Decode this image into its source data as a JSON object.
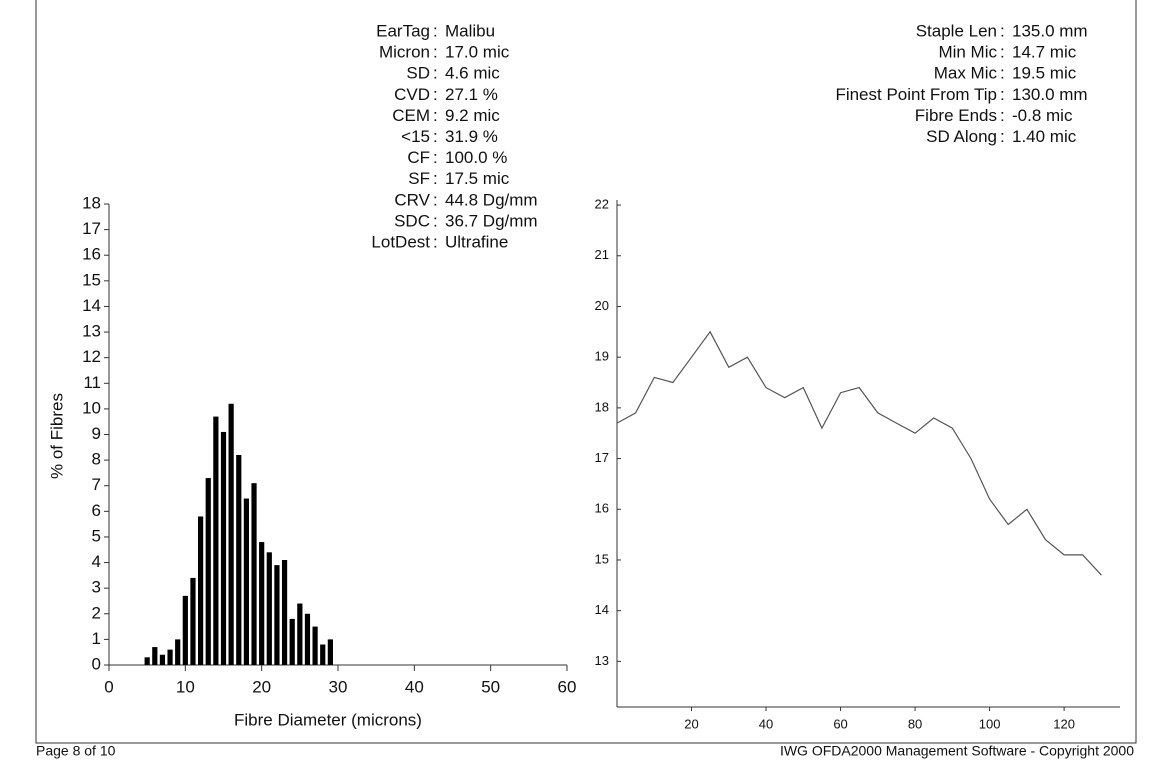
{
  "stats_left": [
    {
      "label": "EarTag",
      "value": "Malibu"
    },
    {
      "label": "Micron",
      "value": "17.0 mic"
    },
    {
      "label": "SD",
      "value": "4.6 mic"
    },
    {
      "label": "CVD",
      "value": "27.1 %"
    },
    {
      "label": "CEM",
      "value": "9.2 mic"
    },
    {
      "label": "<15",
      "value": "31.9 %"
    },
    {
      "label": "CF",
      "value": "100.0 %"
    },
    {
      "label": "SF",
      "value": "17.5 mic"
    },
    {
      "label": "CRV",
      "value": "44.8 Dg/mm"
    },
    {
      "label": "SDC",
      "value": "36.7 Dg/mm"
    },
    {
      "label": "LotDest",
      "value": "Ultrafine"
    }
  ],
  "stats_right": [
    {
      "label": "Staple Len",
      "value": "135.0 mm"
    },
    {
      "label": "Min Mic",
      "value": "14.7 mic"
    },
    {
      "label": "Max Mic",
      "value": "19.5 mic"
    },
    {
      "label": "Finest Point From Tip",
      "value": "130.0 mm"
    },
    {
      "label": "Fibre Ends",
      "value": "-0.8 mic"
    },
    {
      "label": "SD Along",
      "value": "1.40 mic"
    }
  ],
  "footer": {
    "page": "Page 8 of 10",
    "software": "IWG OFDA2000 Management Software - Copyright 2000"
  },
  "chart_data": [
    {
      "type": "bar",
      "x_label": "Fibre Diameter (microns)",
      "y_label": "% of Fibres",
      "x": [
        5,
        6,
        7,
        8,
        9,
        10,
        11,
        12,
        13,
        14,
        15,
        16,
        17,
        18,
        19,
        20,
        21,
        22,
        23,
        24,
        25,
        26,
        27,
        28,
        29
      ],
      "values": [
        0.3,
        0.7,
        0.4,
        0.6,
        1.0,
        2.7,
        3.4,
        5.8,
        7.3,
        9.7,
        9.1,
        10.2,
        8.2,
        6.5,
        7.1,
        4.8,
        4.4,
        3.9,
        4.1,
        1.8,
        2.4,
        2.0,
        1.5,
        0.8,
        1.0
      ],
      "color": "#000000",
      "xlim": [
        0,
        60
      ],
      "xticks": [
        0,
        10,
        20,
        30,
        40,
        50,
        60
      ],
      "ylim": [
        0,
        18
      ],
      "yticks": [
        0,
        1,
        2,
        3,
        4,
        5,
        6,
        7,
        8,
        9,
        10,
        11,
        12,
        13,
        14,
        15,
        16,
        17,
        18
      ]
    },
    {
      "type": "line",
      "x": [
        0,
        5,
        10,
        15,
        20,
        25,
        30,
        35,
        40,
        45,
        50,
        55,
        60,
        65,
        70,
        75,
        80,
        85,
        90,
        95,
        100,
        105,
        110,
        115,
        120,
        125,
        130
      ],
      "values": [
        17.7,
        17.9,
        18.6,
        18.5,
        19.0,
        19.5,
        18.8,
        19.0,
        18.4,
        18.2,
        18.4,
        17.6,
        18.3,
        18.4,
        17.9,
        17.7,
        17.5,
        17.8,
        17.6,
        17.0,
        16.2,
        15.7,
        16.0,
        15.4,
        15.1,
        15.1,
        14.7
      ],
      "color": "#555555",
      "xlim": [
        0,
        135
      ],
      "xticks": [
        20,
        40,
        60,
        80,
        100,
        120
      ],
      "ylim": [
        12.1,
        22.1
      ],
      "yticks": [
        13,
        14,
        15,
        16,
        17,
        18,
        19,
        20,
        21,
        22
      ]
    }
  ]
}
